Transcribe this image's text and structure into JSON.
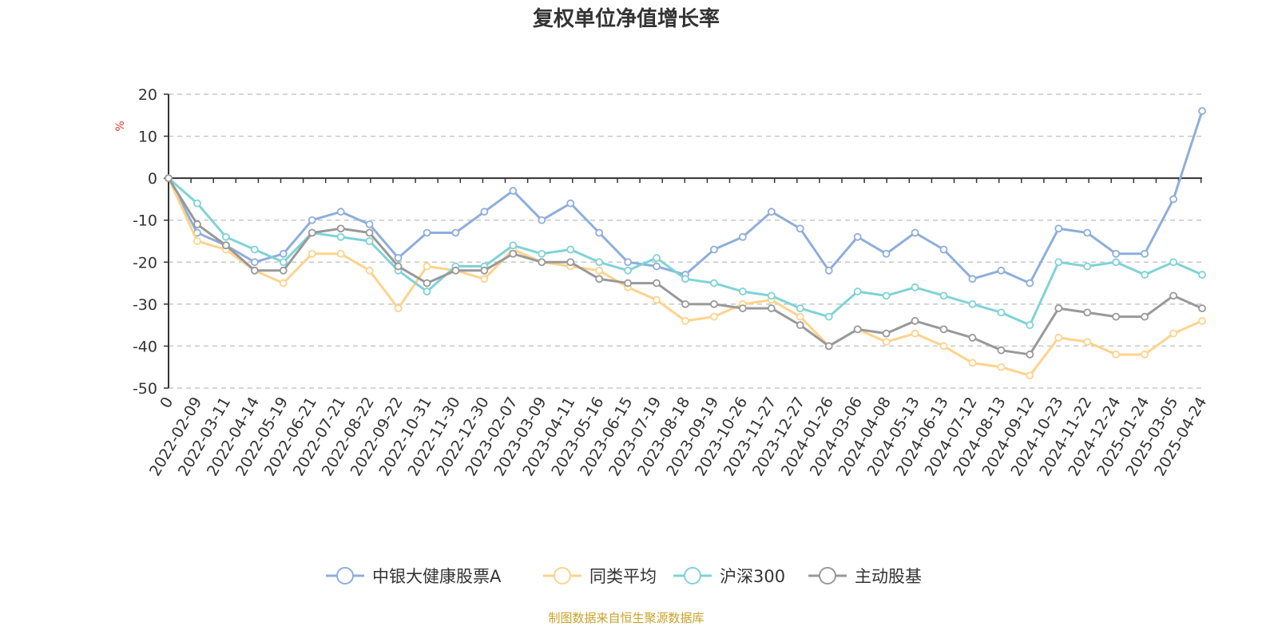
{
  "chart_data": {
    "type": "line",
    "title": "复权单位净值增长率",
    "ylabel": "%",
    "xlabel": "",
    "ylim": [
      -50,
      20
    ],
    "yticks": [
      20,
      10,
      0,
      -10,
      -20,
      -30,
      -40,
      -50
    ],
    "grid": true,
    "legend_position": "bottom",
    "categories": [
      "0",
      "2022-02-09",
      "2022-03-11",
      "2022-04-14",
      "2022-05-19",
      "2022-06-21",
      "2022-07-21",
      "2022-08-22",
      "2022-09-22",
      "2022-10-31",
      "2022-11-30",
      "2022-12-30",
      "2023-02-07",
      "2023-03-09",
      "2023-04-11",
      "2023-05-16",
      "2023-06-15",
      "2023-07-19",
      "2023-08-18",
      "2023-09-19",
      "2023-10-26",
      "2023-11-27",
      "2023-12-27",
      "2024-01-26",
      "2024-03-06",
      "2024-04-08",
      "2024-05-13",
      "2024-06-13",
      "2024-07-12",
      "2024-08-13",
      "2024-09-12",
      "2024-10-23",
      "2024-11-22",
      "2024-12-24",
      "2025-01-24",
      "2025-03-05",
      "2025-04-24"
    ],
    "series": [
      {
        "name": "中银大健康股票A",
        "color": "#8eaedb",
        "values": [
          0,
          -13,
          -16,
          -20,
          -18,
          -10,
          -8,
          -11,
          -19,
          -13,
          -13,
          -8,
          -3,
          -10,
          -6,
          -13,
          -20,
          -21,
          -23,
          -17,
          -14,
          -8,
          -12,
          -22,
          -14,
          -18,
          -13,
          -17,
          -24,
          -22,
          -25,
          -12,
          -13,
          -18,
          -18,
          -5,
          16
        ]
      },
      {
        "name": "同类平均",
        "color": "#fdd38c",
        "values": [
          0,
          -15,
          -17,
          -22,
          -25,
          -18,
          -18,
          -22,
          -31,
          -21,
          -22,
          -24,
          -17,
          -20,
          -21,
          -22,
          -26,
          -29,
          -34,
          -33,
          -30,
          -29,
          -33,
          -40,
          -36,
          -39,
          -37,
          -40,
          -44,
          -45,
          -47,
          -38,
          -39,
          -42,
          -42,
          -37,
          -34
        ]
      },
      {
        "name": "沪深300",
        "color": "#7fd3d6",
        "values": [
          0,
          -6,
          -14,
          -17,
          -20,
          -13,
          -14,
          -15,
          -22,
          -27,
          -21,
          -21,
          -16,
          -18,
          -17,
          -20,
          -22,
          -19,
          -24,
          -25,
          -27,
          -28,
          -31,
          -33,
          -27,
          -28,
          -26,
          -28,
          -30,
          -32,
          -35,
          -20,
          -21,
          -20,
          -23,
          -20,
          -23
        ]
      },
      {
        "name": "主动股基",
        "color": "#999999",
        "values": [
          0,
          -11,
          -16,
          -22,
          -22,
          -13,
          -12,
          -13,
          -21,
          -25,
          -22,
          -22,
          -18,
          -20,
          -20,
          -24,
          -25,
          -25,
          -30,
          -30,
          -31,
          -31,
          -35,
          -40,
          -36,
          -37,
          -34,
          -36,
          -38,
          -41,
          -42,
          -31,
          -32,
          -33,
          -33,
          -28,
          -31
        ]
      }
    ]
  },
  "footer": "制图数据来自恒生聚源数据库"
}
